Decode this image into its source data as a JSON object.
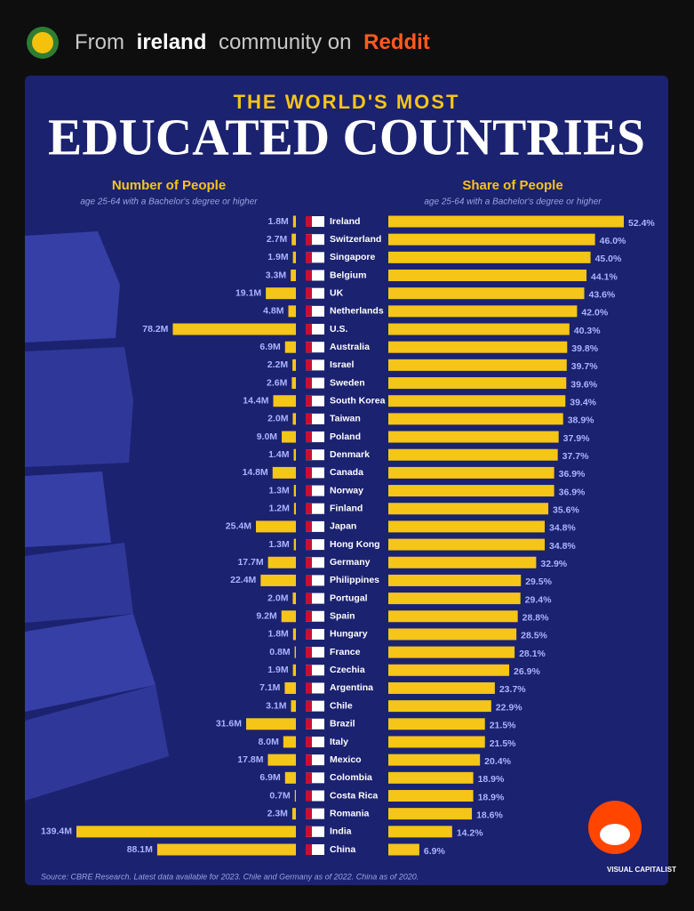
{
  "header": {
    "prefix": "From",
    "community": "ireland",
    "middle": "community on",
    "site": "Reddit"
  },
  "chart_data": {
    "type": "bar",
    "title": "THE WORLD'S MOST",
    "subtitle": "EDUCATED COUNTRIES",
    "categories": [
      "Ireland",
      "Switzerland",
      "Singapore",
      "Belgium",
      "UK",
      "Netherlands",
      "U.S.",
      "Australia",
      "Israel",
      "Sweden",
      "South Korea",
      "Taiwan",
      "Poland",
      "Denmark",
      "Canada",
      "Norway",
      "Finland",
      "Japan",
      "Hong Kong",
      "Germany",
      "Philippines",
      "Portugal",
      "Spain",
      "Hungary",
      "France",
      "Czechia",
      "Argentina",
      "Chile",
      "Brazil",
      "Italy",
      "Mexico",
      "Colombia",
      "Costa Rica",
      "Romania",
      "India",
      "China"
    ],
    "series": [
      {
        "name": "Number of People",
        "description": "age 25-64 with a Bachelor's degree or higher",
        "color": "#f5c518",
        "values": [
          1.8,
          2.7,
          1.9,
          3.3,
          19.1,
          4.8,
          78.2,
          6.9,
          2.2,
          2.6,
          14.4,
          2.0,
          9.0,
          1.4,
          14.8,
          1.3,
          1.2,
          25.4,
          1.3,
          17.7,
          22.4,
          2.0,
          9.2,
          1.8,
          0.8,
          1.9,
          7.1,
          3.1,
          31.6,
          8.0,
          17.8,
          6.9,
          0.7,
          2.3,
          139.4,
          88.1
        ],
        "value_labels": [
          "1.8M",
          "2.7M",
          "1.9M",
          "3.3M",
          "19.1M",
          "4.8M",
          "78.2M",
          "6.9M",
          "2.2M",
          "2.6M",
          "14.4M",
          "2.0M",
          "9.0M",
          "1.4M",
          "14.8M",
          "1.3M",
          "1.2M",
          "25.4M",
          "1.3M",
          "17.7M",
          "22.4M",
          "2.0M",
          "9.2M",
          "1.8M",
          "0.8M",
          "1.9M",
          "7.1M",
          "3.1M",
          "31.6M",
          "8.0M",
          "17.8M",
          "6.9M",
          "0.7M",
          "2.3M",
          "139.4M",
          "88.1M"
        ]
      },
      {
        "name": "Share of People",
        "description": "age 25-64 with a Bachelor's degree or higher",
        "color": "#f5c518",
        "values": [
          52.4,
          46.0,
          45.0,
          44.1,
          43.6,
          42.0,
          40.3,
          39.8,
          39.7,
          39.6,
          39.4,
          38.9,
          37.9,
          37.7,
          36.9,
          36.9,
          35.6,
          34.8,
          34.8,
          32.9,
          29.5,
          29.4,
          28.8,
          28.5,
          28.1,
          26.9,
          23.7,
          22.9,
          21.5,
          21.5,
          20.4,
          18.9,
          18.9,
          18.6,
          14.2,
          6.9
        ],
        "value_labels": [
          "52.4%",
          "46.0%",
          "45.0%",
          "44.1%",
          "43.6%",
          "42.0%",
          "40.3%",
          "39.8%",
          "39.7%",
          "39.6%",
          "39.4%",
          "38.9%",
          "37.9%",
          "37.7%",
          "36.9%",
          "36.9%",
          "35.6%",
          "34.8%",
          "34.8%",
          "32.9%",
          "29.5%",
          "29.4%",
          "28.8%",
          "28.5%",
          "28.1%",
          "26.9%",
          "23.7%",
          "22.9%",
          "21.5%",
          "21.5%",
          "20.4%",
          "18.9%",
          "18.9%",
          "18.6%",
          "14.2%",
          "6.9%"
        ]
      }
    ],
    "source": "Source: CBRE Research. Latest data available for 2023. Chile and Germany as of 2022. China as of 2020.",
    "brand": "VISUAL CAPITALIST"
  }
}
